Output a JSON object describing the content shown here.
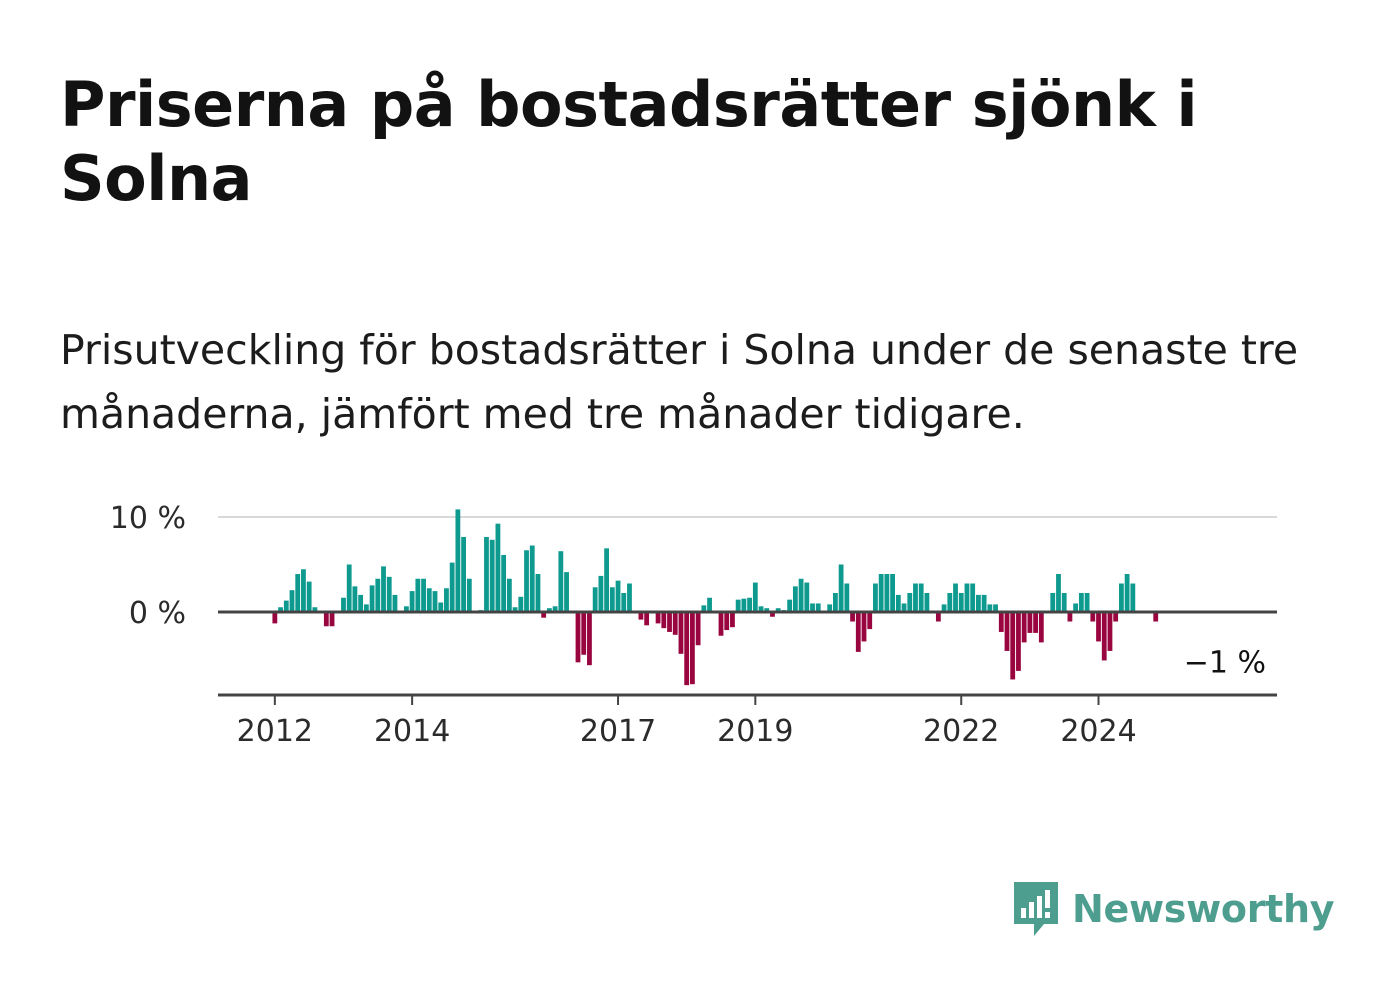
{
  "title": "Priserna på bostadsrätter sjönk i Solna",
  "subtitle": "Prisutveckling för bostadsrätter i Solna under de senaste tre månaderna, jämfört med tre månader tidigare.",
  "brand": {
    "name": "Newsworthy",
    "color": "#4e9e8f",
    "icon": "newsworthy-logo-icon"
  },
  "colors": {
    "positive": "#0e9a8f",
    "negative": "#99063f",
    "zero_line": "#444444",
    "grid": "#d9d9d9"
  },
  "chart_data": {
    "type": "bar",
    "title": "Priserna på bostadsrätter sjönk i Solna",
    "xlabel": "",
    "ylabel": "",
    "start": "2011-11",
    "unit": "%",
    "ylim": [
      -9,
      10.5
    ],
    "yticks": [
      {
        "value": 10,
        "label": "10 %"
      },
      {
        "value": 0,
        "label": "0 %"
      }
    ],
    "xticks": [
      {
        "label": "2012",
        "index": 2
      },
      {
        "label": "2014",
        "index": 26
      },
      {
        "label": "2017",
        "index": 62
      },
      {
        "label": "2019",
        "index": 86
      },
      {
        "label": "2022",
        "index": 122
      },
      {
        "label": "2024",
        "index": 146
      }
    ],
    "annotation": {
      "label": "−1 %",
      "value": -1
    },
    "values": [
      0,
      0,
      -1.2,
      0.5,
      1.2,
      2.3,
      4.0,
      4.5,
      3.2,
      0.5,
      0,
      -1.5,
      -1.5,
      0,
      1.5,
      5.0,
      2.7,
      1.8,
      0.8,
      2.8,
      3.5,
      4.8,
      3.7,
      1.8,
      0,
      0.6,
      2.2,
      3.5,
      3.5,
      2.5,
      2.2,
      1.0,
      2.5,
      5.2,
      10.8,
      7.9,
      3.5,
      0,
      0.2,
      7.9,
      7.6,
      9.3,
      6.0,
      3.5,
      0.5,
      1.6,
      6.5,
      7.0,
      4.0,
      -0.6,
      0.4,
      0.6,
      6.4,
      4.2,
      0,
      -5.3,
      -4.5,
      -5.6,
      2.6,
      3.8,
      6.7,
      2.6,
      3.3,
      2.0,
      3.0,
      0,
      -0.8,
      -1.4,
      0,
      -1.2,
      -1.7,
      -2.1,
      -2.4,
      -4.4,
      -7.7,
      -7.6,
      -3.5,
      0.7,
      1.5,
      0,
      -2.5,
      -1.9,
      -1.6,
      1.3,
      1.4,
      1.5,
      3.1,
      0.6,
      0.4,
      -0.5,
      0.4,
      0.2,
      1.3,
      2.7,
      3.5,
      3.1,
      0.9,
      0.9,
      0,
      0.8,
      2.0,
      5.0,
      3.0,
      -1.0,
      -4.2,
      -3.1,
      -1.8,
      3.0,
      4.0,
      4.0,
      4.0,
      1.8,
      0.9,
      2.0,
      3.0,
      3.0,
      2.0,
      0,
      -1.0,
      0.8,
      2.0,
      3.0,
      2.0,
      3.0,
      3.0,
      1.8,
      1.8,
      0.8,
      0.8,
      -2.1,
      -4.1,
      -7.1,
      -6.2,
      -3.2,
      -2.2,
      -2.2,
      -3.2,
      0,
      2.0,
      4.0,
      2.0,
      -1.0,
      0.9,
      2.0,
      2.0,
      -1.0,
      -3.1,
      -5.1,
      -4.1,
      -1.0,
      3.0,
      4.0,
      3.0,
      0,
      0,
      0,
      -1.0
    ]
  }
}
